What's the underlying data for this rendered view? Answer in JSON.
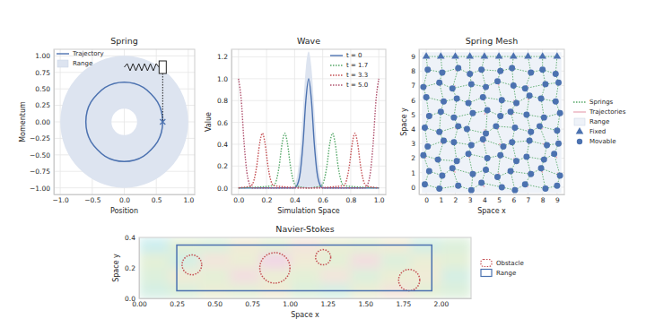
{
  "chart_data": [
    {
      "type": "phase",
      "title": "Spring",
      "x_label": "Position",
      "y_label": "Momentum",
      "xlim": [
        -1.1,
        1.1
      ],
      "ylim": [
        -1.1,
        1.1
      ],
      "xticks": [
        {
          "value": -1,
          "label": "−1.0"
        },
        {
          "value": -0.5,
          "label": "−0.5"
        },
        {
          "value": 0,
          "label": "0.0"
        },
        {
          "value": 0.5,
          "label": "0.5"
        },
        {
          "value": 1,
          "label": "1.0"
        }
      ],
      "yticks": [
        {
          "value": -1,
          "label": "−1.00"
        },
        {
          "value": -0.75,
          "label": "−0.75"
        },
        {
          "value": -0.5,
          "label": "−0.50"
        },
        {
          "value": -0.25,
          "label": "−0.25"
        },
        {
          "value": 0,
          "label": "0.00"
        },
        {
          "value": 0.25,
          "label": "0.25"
        },
        {
          "value": 0.5,
          "label": "0.50"
        },
        {
          "value": 0.75,
          "label": "0.75"
        },
        {
          "value": 1,
          "label": "1.00"
        }
      ],
      "grid": true,
      "legend": "upper left",
      "series": [
        {
          "name": "Trajectory",
          "type": "line",
          "color": "#4c72b0",
          "line_style": "solid",
          "x": [
            0.6,
            0.58,
            0.52,
            0.42,
            0.3,
            0.16,
            0,
            -0.16,
            -0.3,
            -0.42,
            -0.52,
            -0.58,
            -0.6,
            -0.58,
            -0.52,
            -0.42,
            -0.3,
            -0.16,
            0,
            0.16,
            0.3,
            0.42,
            0.52,
            0.58
          ],
          "y": [
            0,
            0.16,
            0.3,
            0.42,
            0.52,
            0.58,
            0.6,
            0.58,
            0.52,
            0.42,
            0.3,
            0.16,
            0,
            -0.16,
            -0.3,
            -0.42,
            -0.52,
            -0.58,
            -0.6,
            -0.58,
            -0.52,
            -0.42,
            -0.3,
            -0.16
          ]
        },
        {
          "name": "Range",
          "type": "annulus",
          "color": "#dde4f0",
          "center": [
            0,
            0
          ],
          "inner": 0.2,
          "outer": 1.0
        }
      ],
      "current": {
        "x": 0.6,
        "y": 0.0
      }
    },
    {
      "type": "wave",
      "title": "Wave",
      "x_label": "Simulation Space",
      "y_label": "Value",
      "xlim": [
        -0.05,
        1.05
      ],
      "ylim": [
        -0.06,
        1.27
      ],
      "xticks": [
        {
          "value": 0,
          "label": "0.0"
        },
        {
          "value": 0.2,
          "label": "0.2"
        },
        {
          "value": 0.4,
          "label": "0.4"
        },
        {
          "value": 0.6,
          "label": "0.6"
        },
        {
          "value": 0.8,
          "label": "0.8"
        },
        {
          "value": 1,
          "label": "1.0"
        }
      ],
      "yticks": [
        {
          "value": 0,
          "label": "0.0"
        },
        {
          "value": 0.2,
          "label": "0.2"
        },
        {
          "value": 0.4,
          "label": "0.4"
        },
        {
          "value": 0.6,
          "label": "0.6"
        },
        {
          "value": 0.8,
          "label": "0.8"
        },
        {
          "value": 1,
          "label": "1.0"
        },
        {
          "value": 1.2,
          "label": "1.2"
        }
      ],
      "grid": true,
      "legend": "upper right",
      "range": {
        "color": "#dde4f0",
        "x": [
          0,
          0.38,
          0.4,
          0.42,
          0.44,
          0.46,
          0.48,
          0.5,
          0.52,
          0.54,
          0.56,
          0.58,
          0.6,
          0.62,
          1
        ],
        "values": [
          0,
          0,
          0.03,
          0.12,
          0.35,
          0.72,
          1.1,
          1.25,
          1.1,
          0.72,
          0.35,
          0.12,
          0.03,
          0,
          0
        ]
      },
      "series": [
        {
          "name": "t = 0",
          "type": "line",
          "color": "#4c72b0",
          "line_style": "solid",
          "x": [
            0,
            0.4,
            0.42,
            0.44,
            0.46,
            0.48,
            0.5,
            0.52,
            0.54,
            0.56,
            0.58,
            0.6,
            1
          ],
          "values": [
            0,
            0,
            0.03,
            0.14,
            0.41,
            0.8,
            1,
            0.8,
            0.41,
            0.14,
            0.03,
            0,
            0
          ]
        },
        {
          "name": "t = 1.7",
          "type": "line",
          "color": "#55a868",
          "line_style": "dotted",
          "x": [
            0,
            0.25,
            0.27,
            0.29,
            0.31,
            0.33,
            0.35,
            0.37,
            0.39,
            0.41,
            0.5,
            0.59,
            0.61,
            0.63,
            0.65,
            0.67,
            0.69,
            0.71,
            0.73,
            0.75,
            1
          ],
          "values": [
            0,
            0.02,
            0.07,
            0.2,
            0.4,
            0.5,
            0.4,
            0.2,
            0.07,
            0.02,
            0,
            0.02,
            0.07,
            0.2,
            0.4,
            0.5,
            0.4,
            0.2,
            0.07,
            0.02,
            0
          ]
        },
        {
          "name": "t = 3.3",
          "type": "line",
          "color": "#c44e52",
          "line_style": "dotted",
          "x": [
            0,
            0.09,
            0.11,
            0.13,
            0.15,
            0.17,
            0.19,
            0.21,
            0.23,
            0.25,
            0.5,
            0.75,
            0.77,
            0.79,
            0.81,
            0.83,
            0.85,
            0.87,
            0.89,
            0.91,
            1
          ],
          "values": [
            0,
            0.02,
            0.07,
            0.2,
            0.4,
            0.5,
            0.4,
            0.2,
            0.07,
            0.02,
            0,
            0.02,
            0.07,
            0.2,
            0.4,
            0.5,
            0.4,
            0.2,
            0.07,
            0.02,
            0
          ]
        },
        {
          "name": "t = 5.0",
          "type": "line",
          "color": "#b0526e",
          "line_style": "dotted",
          "x": [
            0,
            0.02,
            0.04,
            0.06,
            0.08,
            0.1,
            0.5,
            0.9,
            0.92,
            0.94,
            0.96,
            0.98,
            1
          ],
          "values": [
            1,
            0.8,
            0.41,
            0.14,
            0.03,
            0,
            0,
            0,
            0.03,
            0.14,
            0.41,
            0.8,
            1
          ]
        }
      ]
    },
    {
      "type": "spring_mesh",
      "title": "Spring Mesh",
      "x_label": "Space x",
      "y_label": "Space y",
      "xlim": [
        -0.5,
        9.5
      ],
      "ylim": [
        -0.5,
        9.5
      ],
      "xticks": [
        0,
        1,
        2,
        3,
        4,
        5,
        6,
        7,
        8,
        9
      ],
      "yticks": [
        0,
        1,
        2,
        3,
        4,
        5,
        6,
        7,
        8,
        9
      ],
      "grid": true,
      "legend": "right",
      "series": [
        {
          "name": "Springs",
          "type": "line",
          "color": "#55a868",
          "line_style": "dotted"
        },
        {
          "name": "Trajectories",
          "type": "segment",
          "color": "#e8a3b3",
          "x": [
            0,
            1,
            2,
            3,
            4,
            5,
            6,
            7,
            8,
            9,
            0,
            1,
            2,
            3,
            4,
            5,
            6,
            7,
            8,
            9,
            0,
            1,
            2,
            3,
            4,
            5,
            6,
            7,
            8,
            9,
            0,
            1,
            2,
            3,
            4,
            5,
            6,
            7,
            8,
            9,
            0,
            1,
            2,
            3,
            4,
            5,
            6,
            7,
            8,
            9,
            0,
            1,
            2,
            3,
            4,
            5,
            6,
            7,
            8,
            9,
            0,
            1,
            2,
            3,
            4,
            5,
            6,
            7,
            8,
            9,
            0,
            1,
            2,
            3,
            4,
            5,
            6,
            7,
            8,
            9,
            0,
            1,
            2,
            3,
            4,
            5,
            6,
            7,
            8,
            9
          ],
          "y": [
            8,
            8,
            8,
            8,
            8,
            8,
            8,
            8,
            8,
            8,
            7,
            7,
            7,
            7,
            7,
            7,
            7,
            7,
            7,
            7,
            6,
            6,
            6,
            6,
            6,
            6,
            6,
            6,
            6,
            6,
            5,
            5,
            5,
            5,
            5,
            5,
            5,
            5,
            5,
            5,
            4,
            4,
            4,
            4,
            4,
            4,
            4,
            4,
            4,
            4,
            3,
            3,
            3,
            3,
            3,
            3,
            3,
            3,
            3,
            3,
            2,
            2,
            2,
            2,
            2,
            2,
            2,
            2,
            2,
            2,
            1,
            1,
            1,
            1,
            1,
            1,
            1,
            1,
            1,
            1,
            0,
            0,
            0,
            0,
            0,
            0,
            0,
            0,
            0,
            0
          ]
        },
        {
          "name": "Range",
          "type": "area",
          "color": "#eef2f8",
          "x": [
            -0.3,
            9.3
          ],
          "y": [
            -0.4,
            9.3
          ]
        },
        {
          "name": "Fixed",
          "type": "scatter",
          "marker": "triangle",
          "color": "#4c72b0",
          "x": [
            0,
            1,
            2,
            3,
            4,
            5,
            6,
            7,
            8,
            9
          ],
          "y": [
            9,
            9,
            9,
            9,
            9,
            9,
            9,
            9,
            9,
            9
          ]
        },
        {
          "name": "Movable",
          "type": "scatter",
          "marker": "circle",
          "color": "#4c72b0",
          "x": [
            0.1,
            1.1,
            2.2,
            3.0,
            3.8,
            5.1,
            5.9,
            7.2,
            8.0,
            8.9,
            -0.2,
            0.9,
            1.8,
            3.1,
            4.1,
            4.9,
            6.0,
            6.8,
            8.2,
            9.1,
            0.0,
            1.2,
            2.1,
            2.9,
            3.9,
            5.2,
            6.2,
            7.1,
            7.9,
            8.9,
            0.2,
            1.0,
            1.9,
            3.2,
            4.2,
            5.1,
            5.8,
            6.9,
            8.1,
            9.2,
            -0.1,
            0.9,
            2.2,
            2.8,
            4.1,
            4.8,
            6.1,
            7.2,
            7.8,
            9.0,
            0.1,
            1.2,
            1.9,
            3.1,
            3.9,
            5.3,
            5.9,
            7.1,
            8.3,
            9.1,
            -0.2,
            0.8,
            2.1,
            2.9,
            4.2,
            5.1,
            6.2,
            6.9,
            8.1,
            8.8,
            0.2,
            1.1,
            1.8,
            3.2,
            4.1,
            4.9,
            5.8,
            7.2,
            7.9,
            9.2,
            -0.1,
            0.9,
            2.2,
            3.1,
            3.8,
            5.2,
            6.1,
            6.8,
            8.2,
            9.0
          ],
          "y": [
            8.1,
            7.9,
            8.2,
            7.8,
            8.1,
            8.0,
            8.2,
            7.9,
            8.1,
            7.8,
            6.9,
            7.2,
            6.8,
            7.1,
            6.9,
            7.3,
            7.0,
            6.8,
            7.1,
            7.2,
            6.2,
            5.9,
            6.1,
            5.8,
            6.2,
            6.0,
            5.8,
            6.3,
            6.1,
            5.9,
            4.9,
            5.2,
            4.8,
            5.1,
            5.3,
            4.9,
            5.2,
            5.0,
            4.8,
            5.1,
            4.1,
            3.8,
            4.2,
            4.0,
            3.7,
            4.2,
            4.1,
            3.8,
            4.2,
            3.9,
            2.8,
            3.2,
            3.1,
            2.9,
            3.3,
            2.8,
            3.1,
            3.2,
            2.9,
            3.0,
            2.2,
            1.9,
            1.8,
            2.3,
            2.0,
            2.2,
            1.8,
            2.1,
            1.9,
            2.3,
            1.1,
            0.8,
            1.3,
            0.9,
            1.2,
            0.7,
            1.1,
            0.9,
            1.3,
            0.8,
            0.2,
            -0.1,
            0.1,
            -0.2,
            0.3,
            0.0,
            -0.2,
            0.2,
            -0.1,
            0.1
          ]
        }
      ]
    },
    {
      "type": "flow",
      "title": "Navier-Stokes",
      "x_label": "Space x",
      "y_label": "Space y",
      "xlim": [
        0,
        2.2
      ],
      "ylim": [
        0,
        0.4
      ],
      "xticks": [
        {
          "value": 0,
          "label": "0.00"
        },
        {
          "value": 0.25,
          "label": "0.25"
        },
        {
          "value": 0.5,
          "label": "0.50"
        },
        {
          "value": 0.75,
          "label": "0.75"
        },
        {
          "value": 1,
          "label": "1.00"
        },
        {
          "value": 1.25,
          "label": "1.25"
        },
        {
          "value": 1.5,
          "label": "1.50"
        },
        {
          "value": 1.75,
          "label": "1.75"
        },
        {
          "value": 2,
          "label": "2.00"
        }
      ],
      "yticks": [
        {
          "value": 0,
          "label": "0.0"
        },
        {
          "value": 0.2,
          "label": "0.2"
        },
        {
          "value": 0.4,
          "label": "0.4"
        }
      ],
      "grid": false,
      "legend": "right",
      "field": {
        "values": [
          [
            0.2,
            0.3,
            0.5,
            0.4,
            0.6,
            0.3,
            0.2,
            0.5,
            0.7,
            0.4,
            0.3
          ],
          [
            0.3,
            0.6,
            0.4,
            0.8,
            0.5,
            0.4,
            0.7,
            0.3,
            0.5,
            0.6,
            0.2
          ],
          [
            0.4,
            0.2,
            0.7,
            0.5,
            0.9,
            0.6,
            0.4,
            0.8,
            0.3,
            0.5,
            0.4
          ],
          [
            0.1,
            0.4,
            0.3,
            0.6,
            0.4,
            0.7,
            0.5,
            0.4,
            0.6,
            0.2,
            0.3
          ]
        ]
      },
      "series": [
        {
          "name": "Obstacle",
          "type": "circle",
          "color": "#c44e52",
          "line_style": "dotted",
          "x": [
            0.35,
            0.9,
            1.22,
            1.79
          ],
          "y": [
            0.22,
            0.2,
            0.27,
            0.12
          ],
          "radius": [
            0.065,
            0.1,
            0.05,
            0.07
          ]
        },
        {
          "name": "Range",
          "type": "rect",
          "color": "#4c72b0",
          "x": [
            0.25,
            1.94
          ],
          "y": [
            0.05,
            0.35
          ]
        }
      ]
    }
  ]
}
